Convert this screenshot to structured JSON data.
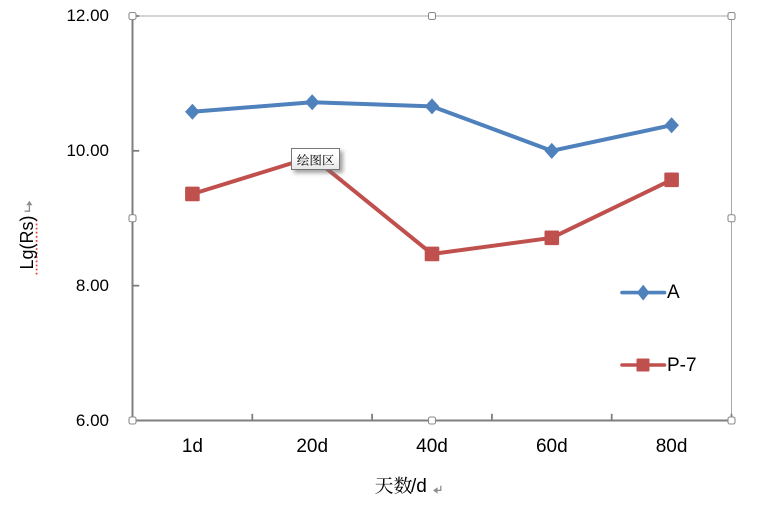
{
  "chart_data": {
    "type": "line",
    "categories": [
      "1d",
      "20d",
      "40d",
      "60d",
      "80d"
    ],
    "series": [
      {
        "name": "A",
        "color": "#4F81BD",
        "marker": "diamond",
        "values": [
          10.58,
          10.72,
          10.66,
          10.0,
          10.38
        ]
      },
      {
        "name": "P-7",
        "color": "#C0504D",
        "marker": "square",
        "values": [
          9.36,
          9.91,
          8.47,
          8.71,
          9.57
        ]
      }
    ],
    "xlabel": "天数/d",
    "ylabel": "Lg(Rs)",
    "ylim": [
      6,
      12
    ],
    "y_major_unit": 2,
    "y_tick_labels": [
      "12.00",
      "10.00",
      "8.00",
      "6.00"
    ],
    "grid": false,
    "legend_position": "right-overlay"
  },
  "y_axis": {
    "title": "Lg(Rs)",
    "labels": [
      "12.00",
      "10.00",
      "8.00",
      "6.00"
    ]
  },
  "x_axis": {
    "title_cjk": "天数",
    "title_latin": "/d",
    "full_title": "天数/d",
    "labels": [
      "1d",
      "20d",
      "40d",
      "60d",
      "80d"
    ]
  },
  "legend": {
    "items": [
      {
        "label": "A"
      },
      {
        "label": "P-7"
      }
    ]
  },
  "tooltip": {
    "text": "绘图区"
  },
  "colors": {
    "series_a": "#4F81BD",
    "series_p7": "#C0504D",
    "axis_line": "#7F7F7F",
    "selection_outline": "#A8A8A8",
    "handle_border": "#8C8C8C",
    "spellcheck_underline": "#E53935",
    "return_mark": "#8E8E8E",
    "background": "#FFFFFF"
  }
}
